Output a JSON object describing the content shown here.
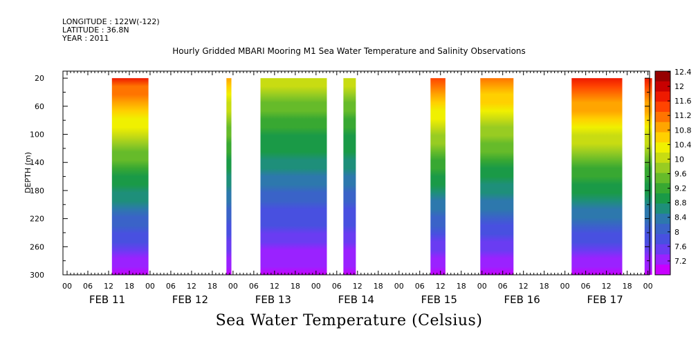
{
  "header": {
    "longitude": "LONGITUDE : 122W(-122)",
    "latitude": "LATITUDE : 36.8N",
    "year": "YEAR : 2011"
  },
  "chart_data": {
    "type": "heatmap",
    "title": "Hourly Gridded MBARI Mooring M1 Sea Water Temperature and Salinity Observations",
    "subtitle": "Sea Water Temperature (Celsius)",
    "ylabel": "DEPTH (m)",
    "xlabel": "",
    "y_ticks": [
      20,
      60,
      100,
      140,
      180,
      220,
      260,
      300
    ],
    "ylim": [
      300,
      10
    ],
    "x_hour_ticks": [
      "00",
      "06",
      "12",
      "18",
      "00",
      "06",
      "12",
      "18",
      "00",
      "06",
      "12",
      "18",
      "00",
      "06",
      "12",
      "18",
      "00",
      "06",
      "12",
      "18",
      "00",
      "06",
      "12",
      "18",
      "00",
      "06",
      "12",
      "18",
      "00"
    ],
    "x_day_labels": [
      "FEB 11",
      "FEB 12",
      "FEB 13",
      "FEB 14",
      "FEB 15",
      "FEB 16",
      "FEB 17"
    ],
    "colorbar": {
      "levels": [
        "12.4",
        "12",
        "11.6",
        "11.2",
        "10.8",
        "10.4",
        "10",
        "9.6",
        "9.2",
        "8.8",
        "8.4",
        "8",
        "7.6",
        "7.2"
      ],
      "min": 7.2,
      "max": 12.6,
      "colors": [
        "#c800ff",
        "#9a22ff",
        "#6a3cf2",
        "#4850e0",
        "#3a63c8",
        "#2d78ad",
        "#1e8f7a",
        "#1a9a47",
        "#38a832",
        "#66bb2a",
        "#98cc22",
        "#c8dc12",
        "#f0f000",
        "#ffd000",
        "#ffa500",
        "#ff7400",
        "#ff4400",
        "#ee1a00",
        "#c80000",
        "#960000"
      ]
    },
    "segments": [
      {
        "start_day": 0.54,
        "end_day": 0.98,
        "surface_temp": 11.8
      },
      {
        "start_day": 1.92,
        "end_day": 1.98,
        "surface_temp": 11.0
      },
      {
        "start_day": 2.33,
        "end_day": 3.13,
        "surface_temp": 10.4
      },
      {
        "start_day": 3.33,
        "end_day": 3.48,
        "surface_temp": 10.4
      },
      {
        "start_day": 4.38,
        "end_day": 4.56,
        "surface_temp": 11.6
      },
      {
        "start_day": 4.98,
        "end_day": 5.38,
        "surface_temp": 11.4
      },
      {
        "start_day": 6.08,
        "end_day": 6.69,
        "surface_temp": 12.0
      },
      {
        "start_day": 6.96,
        "end_day": 7.05,
        "surface_temp": 12.0
      }
    ]
  }
}
